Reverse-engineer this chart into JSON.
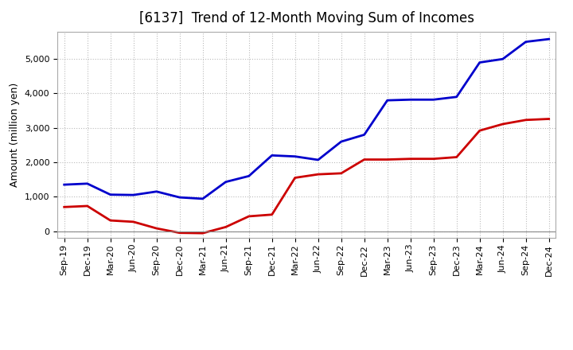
{
  "title": "[6137]  Trend of 12-Month Moving Sum of Incomes",
  "ylabel": "Amount (million yen)",
  "background_color": "#ffffff",
  "plot_bg_color": "#ffffff",
  "grid_color": "#bbbbbb",
  "labels": [
    "Sep-19",
    "Dec-19",
    "Mar-20",
    "Jun-20",
    "Sep-20",
    "Dec-20",
    "Mar-21",
    "Jun-21",
    "Sep-21",
    "Dec-21",
    "Mar-22",
    "Jun-22",
    "Sep-22",
    "Dec-22",
    "Mar-23",
    "Jun-23",
    "Sep-23",
    "Dec-23",
    "Mar-24",
    "Jun-24",
    "Sep-24",
    "Dec-24"
  ],
  "ordinary_income": [
    1350,
    1380,
    1060,
    1050,
    1150,
    980,
    940,
    1430,
    1600,
    2200,
    2170,
    2070,
    2600,
    2800,
    3800,
    3820,
    3820,
    3900,
    4900,
    5000,
    5500,
    5580
  ],
  "net_income": [
    700,
    730,
    310,
    270,
    80,
    -50,
    -60,
    120,
    430,
    480,
    1550,
    1650,
    1680,
    2080,
    2080,
    2100,
    2100,
    2150,
    2920,
    3110,
    3230,
    3260
  ],
  "ordinary_color": "#0000cc",
  "net_color": "#cc0000",
  "ylim_min": -200,
  "ylim_max": 5800,
  "yticks": [
    0,
    1000,
    2000,
    3000,
    4000,
    5000
  ],
  "line_width": 2.0,
  "title_fontsize": 12,
  "legend_fontsize": 9.5,
  "tick_fontsize": 8,
  "ylabel_fontsize": 9
}
